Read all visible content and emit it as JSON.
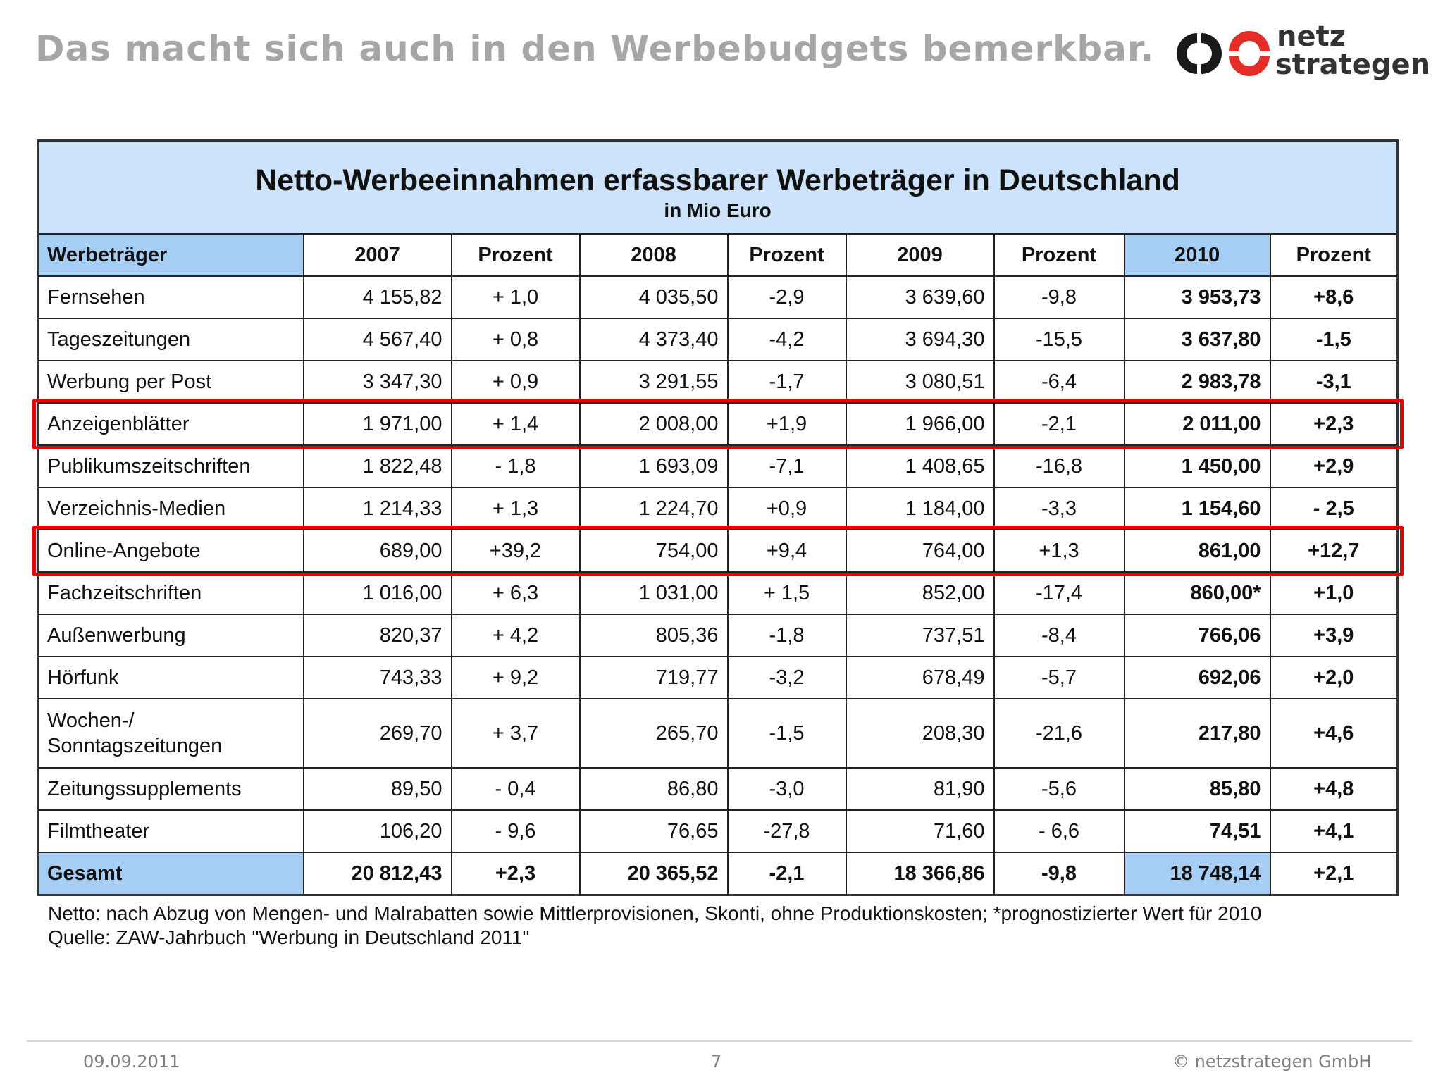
{
  "slide": {
    "title": "Das macht sich auch in den Werbebudgets bemerkbar."
  },
  "logo": {
    "line1": "netz",
    "line2": "strategen",
    "colors": {
      "dark": "#1a1a1a",
      "accent": "#e52d27"
    }
  },
  "table": {
    "title": "Netto-Werbeeinnahmen erfassbarer Werbeträger in Deutschland",
    "subtitle": "in Mio Euro",
    "headers": [
      "Werbeträger",
      "2007",
      "Prozent",
      "2008",
      "Prozent",
      "2009",
      "Prozent",
      "2010",
      "Prozent"
    ],
    "rows": [
      {
        "label": "Fernsehen",
        "v2007": "4 155,82",
        "p2007": "+ 1,0",
        "v2008": "4 035,50",
        "p2008": "-2,9",
        "v2009": "3 639,60",
        "p2009": "-9,8",
        "v2010": "3 953,73",
        "p2010": "+8,6"
      },
      {
        "label": "Tageszeitungen",
        "v2007": "4 567,40",
        "p2007": "+ 0,8",
        "v2008": "4 373,40",
        "p2008": "-4,2",
        "v2009": "3 694,30",
        "p2009": "-15,5",
        "v2010": "3 637,80",
        "p2010": "-1,5"
      },
      {
        "label": "Werbung per Post",
        "v2007": "3 347,30",
        "p2007": "+ 0,9",
        "v2008": "3 291,55",
        "p2008": "-1,7",
        "v2009": "3 080,51",
        "p2009": "-6,4",
        "v2010": "2 983,78",
        "p2010": "-3,1"
      },
      {
        "label": "Anzeigenblätter",
        "v2007": "1 971,00",
        "p2007": "+ 1,4",
        "v2008": "2 008,00",
        "p2008": "+1,9",
        "v2009": "1 966,00",
        "p2009": "-2,1",
        "v2010": "2 011,00",
        "p2010": "+2,3"
      },
      {
        "label": "Publikumszeitschriften",
        "v2007": "1 822,48",
        "p2007": "- 1,8",
        "v2008": "1 693,09",
        "p2008": "-7,1",
        "v2009": "1 408,65",
        "p2009": "-16,8",
        "v2010": "1 450,00",
        "p2010": "+2,9"
      },
      {
        "label": "Verzeichnis-Medien",
        "v2007": "1 214,33",
        "p2007": "+ 1,3",
        "v2008": "1 224,70",
        "p2008": "+0,9",
        "v2009": "1 184,00",
        "p2009": "-3,3",
        "v2010": "1 154,60",
        "p2010": "- 2,5"
      },
      {
        "label": "Online-Angebote",
        "v2007": "689,00",
        "p2007": "+39,2",
        "v2008": "754,00",
        "p2008": "+9,4",
        "v2009": "764,00",
        "p2009": "+1,3",
        "v2010": "861,00",
        "p2010": "+12,7"
      },
      {
        "label": "Fachzeitschriften",
        "v2007": "1 016,00",
        "p2007": "+ 6,3",
        "v2008": "1 031,00",
        "p2008": "+ 1,5",
        "v2009": "852,00",
        "p2009": "-17,4",
        "v2010": "860,00*",
        "p2010": "+1,0"
      },
      {
        "label": "Außenwerbung",
        "v2007": "820,37",
        "p2007": "+ 4,2",
        "v2008": "805,36",
        "p2008": "-1,8",
        "v2009": "737,51",
        "p2009": "-8,4",
        "v2010": "766,06",
        "p2010": "+3,9"
      },
      {
        "label": "Hörfunk",
        "v2007": "743,33",
        "p2007": "+ 9,2",
        "v2008": "719,77",
        "p2008": "-3,2",
        "v2009": "678,49",
        "p2009": "-5,7",
        "v2010": "692,06",
        "p2010": "+2,0"
      },
      {
        "label": "Wochen-/",
        "label2": "Sonntagszeitungen",
        "v2007": "269,70",
        "p2007": "+ 3,7",
        "v2008": "265,70",
        "p2008": "-1,5",
        "v2009": "208,30",
        "p2009": "-21,6",
        "v2010": "217,80",
        "p2010": "+4,6"
      },
      {
        "label": "Zeitungssupplements",
        "v2007": "89,50",
        "p2007": "- 0,4",
        "v2008": "86,80",
        "p2008": "-3,0",
        "v2009": "81,90",
        "p2009": "-5,6",
        "v2010": "85,80",
        "p2010": "+4,8"
      },
      {
        "label": "Filmtheater",
        "v2007": "106,20",
        "p2007": "- 9,6",
        "v2008": "76,65",
        "p2008": "-27,8",
        "v2009": "71,60",
        "p2009": "- 6,6",
        "v2010": "74,51",
        "p2010": "+4,1"
      }
    ],
    "total": {
      "label": "Gesamt",
      "v2007": "20 812,43",
      "p2007": "+2,3",
      "v2008": "20 365,52",
      "p2008": "-2,1",
      "v2009": "18 366,86",
      "p2009": "-9,8",
      "v2010": "18 748,14",
      "p2010": "+2,1"
    },
    "highlighted_rows": [
      "Anzeigenblätter",
      "Online-Angebote"
    ],
    "colors": {
      "header_bg": "#cce3fb",
      "column_2010_bg": "#a6cdf3",
      "highlight": "#e80000"
    }
  },
  "notes": {
    "line1": "Netto: nach Abzug von Mengen- und Malrabatten sowie Mittlerprovisionen, Skonti, ohne Produktionskosten; *prognostizierter Wert für 2010",
    "line2": "Quelle:  ZAW-Jahrbuch \"Werbung in Deutschland 2011\""
  },
  "footer": {
    "date": "09.09.2011",
    "page": "7",
    "copyright": "© netzstrategen GmbH"
  }
}
